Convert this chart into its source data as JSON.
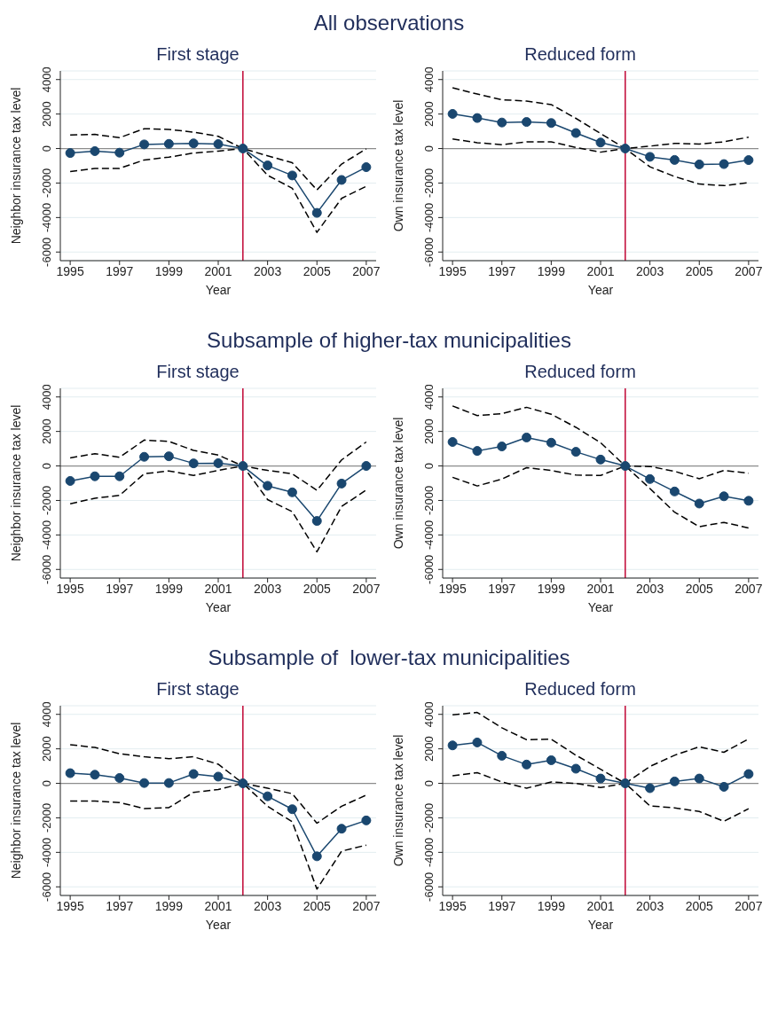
{
  "chart_data": [
    {
      "type": "line",
      "title": "First stage",
      "annotations": [
        "All observations"
      ],
      "xlabel": "Year",
      "ylabel": "Neighbor insurance tax level",
      "x": [
        1995,
        1996,
        1997,
        1998,
        1999,
        2000,
        2001,
        2002,
        2003,
        2004,
        2005,
        2006,
        2007
      ],
      "xlim": [
        1994.6,
        2007.4
      ],
      "xticks": [
        1995,
        1997,
        1999,
        2001,
        2003,
        2005,
        2007
      ],
      "ylim": [
        -6500,
        4500
      ],
      "yticks": [
        -6000,
        -4000,
        -2000,
        0,
        2000,
        4000
      ],
      "grid": "y",
      "ref_lines": [
        {
          "axis": "x",
          "value": 2002,
          "color": "#c10534"
        },
        {
          "axis": "y",
          "value": 0,
          "color": "#8c8c8c"
        }
      ],
      "series": [
        {
          "color": "#1a476f",
          "marker": "circle",
          "line_style": "solid",
          "values": [
            -260,
            -150,
            -240,
            240,
            270,
            300,
            260,
            0,
            -980,
            -1560,
            -3730,
            -1820,
            -1080
          ]
        },
        {
          "color": "#000000",
          "marker": "none",
          "line_style": "dashed",
          "values": [
            790,
            820,
            630,
            1150,
            1110,
            950,
            710,
            0,
            -420,
            -820,
            -2400,
            -900,
            -20
          ]
        },
        {
          "color": "#000000",
          "marker": "none",
          "line_style": "dashed",
          "values": [
            -1340,
            -1150,
            -1150,
            -660,
            -500,
            -260,
            -150,
            0,
            -1550,
            -2300,
            -4860,
            -2890,
            -2190
          ]
        }
      ]
    },
    {
      "type": "line",
      "title": "Reduced form",
      "xlabel": "Year",
      "ylabel": "Own insurance tax level",
      "x": [
        1995,
        1996,
        1997,
        1998,
        1999,
        2000,
        2001,
        2002,
        2003,
        2004,
        2005,
        2006,
        2007
      ],
      "xlim": [
        1994.6,
        2007.4
      ],
      "xticks": [
        1995,
        1997,
        1999,
        2001,
        2003,
        2005,
        2007
      ],
      "ylim": [
        -6500,
        4500
      ],
      "yticks": [
        -6000,
        -4000,
        -2000,
        0,
        2000,
        4000
      ],
      "grid": "y",
      "ref_lines": [
        {
          "axis": "x",
          "value": 2002,
          "color": "#c10534"
        },
        {
          "axis": "y",
          "value": 0,
          "color": "#8c8c8c"
        }
      ],
      "series": [
        {
          "color": "#1a476f",
          "marker": "circle",
          "line_style": "solid",
          "values": [
            2010,
            1770,
            1510,
            1540,
            1480,
            900,
            350,
            0,
            -480,
            -660,
            -920,
            -900,
            -670
          ]
        },
        {
          "color": "#000000",
          "marker": "none",
          "line_style": "dashed",
          "values": [
            3520,
            3160,
            2830,
            2750,
            2550,
            1750,
            870,
            0,
            140,
            300,
            260,
            390,
            660
          ]
        },
        {
          "color": "#000000",
          "marker": "none",
          "line_style": "dashed",
          "values": [
            550,
            340,
            220,
            390,
            390,
            60,
            -210,
            0,
            -1060,
            -1620,
            -2060,
            -2150,
            -1980
          ]
        }
      ]
    },
    {
      "type": "line",
      "title": "First stage",
      "annotations": [
        "Subsample of higher-tax municipalities"
      ],
      "xlabel": "Year",
      "ylabel": "Neighbor insurance tax level",
      "x": [
        1995,
        1996,
        1997,
        1998,
        1999,
        2000,
        2001,
        2002,
        2003,
        2004,
        2005,
        2006,
        2007
      ],
      "xlim": [
        1994.6,
        2007.4
      ],
      "xticks": [
        1995,
        1997,
        1999,
        2001,
        2003,
        2005,
        2007
      ],
      "ylim": [
        -6500,
        4500
      ],
      "yticks": [
        -6000,
        -4000,
        -2000,
        0,
        2000,
        4000
      ],
      "grid": "y",
      "ref_lines": [
        {
          "axis": "x",
          "value": 2002,
          "color": "#c10534"
        },
        {
          "axis": "y",
          "value": 0,
          "color": "#8c8c8c"
        }
      ],
      "series": [
        {
          "color": "#1a476f",
          "marker": "circle",
          "line_style": "solid",
          "values": [
            -870,
            -600,
            -600,
            530,
            560,
            150,
            160,
            0,
            -1150,
            -1530,
            -3190,
            -1020,
            0
          ]
        },
        {
          "color": "#000000",
          "marker": "none",
          "line_style": "dashed",
          "values": [
            470,
            710,
            500,
            1500,
            1420,
            900,
            630,
            0,
            -260,
            -450,
            -1420,
            350,
            1390
          ]
        },
        {
          "color": "#000000",
          "marker": "none",
          "line_style": "dashed",
          "values": [
            -2190,
            -1870,
            -1710,
            -450,
            -290,
            -550,
            -260,
            0,
            -1950,
            -2650,
            -4980,
            -2350,
            -1390
          ]
        }
      ]
    },
    {
      "type": "line",
      "title": "Reduced form",
      "xlabel": "Year",
      "ylabel": "Own insurance tax level",
      "x": [
        1995,
        1996,
        1997,
        1998,
        1999,
        2000,
        2001,
        2002,
        2003,
        2004,
        2005,
        2006,
        2007
      ],
      "xlim": [
        1994.6,
        2007.4
      ],
      "xticks": [
        1995,
        1997,
        1999,
        2001,
        2003,
        2005,
        2007
      ],
      "ylim": [
        -6500,
        4500
      ],
      "yticks": [
        -6000,
        -4000,
        -2000,
        0,
        2000,
        4000
      ],
      "grid": "y",
      "ref_lines": [
        {
          "axis": "x",
          "value": 2002,
          "color": "#c10534"
        },
        {
          "axis": "y",
          "value": 0,
          "color": "#8c8c8c"
        }
      ],
      "series": [
        {
          "color": "#1a476f",
          "marker": "circle",
          "line_style": "solid",
          "values": [
            1390,
            870,
            1130,
            1650,
            1350,
            820,
            370,
            0,
            -760,
            -1480,
            -2180,
            -1760,
            -2020
          ]
        },
        {
          "color": "#000000",
          "marker": "none",
          "line_style": "dashed",
          "values": [
            3480,
            2920,
            3030,
            3400,
            3000,
            2240,
            1350,
            0,
            -30,
            -310,
            -740,
            -260,
            -420
          ]
        },
        {
          "color": "#000000",
          "marker": "none",
          "line_style": "dashed",
          "values": [
            -660,
            -1160,
            -760,
            -100,
            -260,
            -530,
            -550,
            0,
            -1310,
            -2680,
            -3520,
            -3270,
            -3600
          ]
        }
      ]
    },
    {
      "type": "line",
      "title": "First stage",
      "annotations": [
        "Subsample of  lower-tax municipalities"
      ],
      "xlabel": "Year",
      "ylabel": "Neighbor insurance tax level",
      "x": [
        1995,
        1996,
        1997,
        1998,
        1999,
        2000,
        2001,
        2002,
        2003,
        2004,
        2005,
        2006,
        2007
      ],
      "xlim": [
        1994.6,
        2007.4
      ],
      "xticks": [
        1995,
        1997,
        1999,
        2001,
        2003,
        2005,
        2007
      ],
      "ylim": [
        -6500,
        4500
      ],
      "yticks": [
        -6000,
        -4000,
        -2000,
        0,
        2000,
        4000
      ],
      "grid": "y",
      "ref_lines": [
        {
          "axis": "x",
          "value": 2002,
          "color": "#c10534"
        },
        {
          "axis": "y",
          "value": 0,
          "color": "#8c8c8c"
        }
      ],
      "series": [
        {
          "color": "#1a476f",
          "marker": "circle",
          "line_style": "solid",
          "values": [
            590,
            500,
            310,
            20,
            20,
            540,
            390,
            0,
            -750,
            -1500,
            -4230,
            -2630,
            -2150
          ]
        },
        {
          "color": "#000000",
          "marker": "none",
          "line_style": "dashed",
          "values": [
            2240,
            2080,
            1720,
            1540,
            1430,
            1540,
            1110,
            0,
            -280,
            -600,
            -2310,
            -1330,
            -680
          ]
        },
        {
          "color": "#000000",
          "marker": "none",
          "line_style": "dashed",
          "values": [
            -1020,
            -1020,
            -1110,
            -1460,
            -1410,
            -520,
            -360,
            0,
            -1330,
            -2230,
            -6130,
            -3930,
            -3580
          ]
        }
      ]
    },
    {
      "type": "line",
      "title": "Reduced form",
      "xlabel": "Year",
      "ylabel": "Own insurance tax level",
      "x": [
        1995,
        1996,
        1997,
        1998,
        1999,
        2000,
        2001,
        2002,
        2003,
        2004,
        2005,
        2006,
        2007
      ],
      "xlim": [
        1994.6,
        2007.4
      ],
      "xticks": [
        1995,
        1997,
        1999,
        2001,
        2003,
        2005,
        2007
      ],
      "ylim": [
        -6500,
        4500
      ],
      "yticks": [
        -6000,
        -4000,
        -2000,
        0,
        2000,
        4000
      ],
      "grid": "y",
      "ref_lines": [
        {
          "axis": "x",
          "value": 2002,
          "color": "#c10534"
        },
        {
          "axis": "y",
          "value": 0,
          "color": "#8c8c8c"
        }
      ],
      "series": [
        {
          "color": "#1a476f",
          "marker": "circle",
          "line_style": "solid",
          "values": [
            2200,
            2370,
            1600,
            1090,
            1340,
            850,
            280,
            0,
            -280,
            110,
            280,
            -200,
            540
          ]
        },
        {
          "color": "#000000",
          "marker": "none",
          "line_style": "dashed",
          "values": [
            3970,
            4110,
            3220,
            2530,
            2560,
            1630,
            820,
            0,
            980,
            1630,
            2120,
            1800,
            2580
          ]
        },
        {
          "color": "#000000",
          "marker": "none",
          "line_style": "dashed",
          "values": [
            440,
            620,
            80,
            -280,
            80,
            0,
            -240,
            0,
            -1310,
            -1420,
            -1630,
            -2200,
            -1470
          ]
        }
      ]
    }
  ]
}
